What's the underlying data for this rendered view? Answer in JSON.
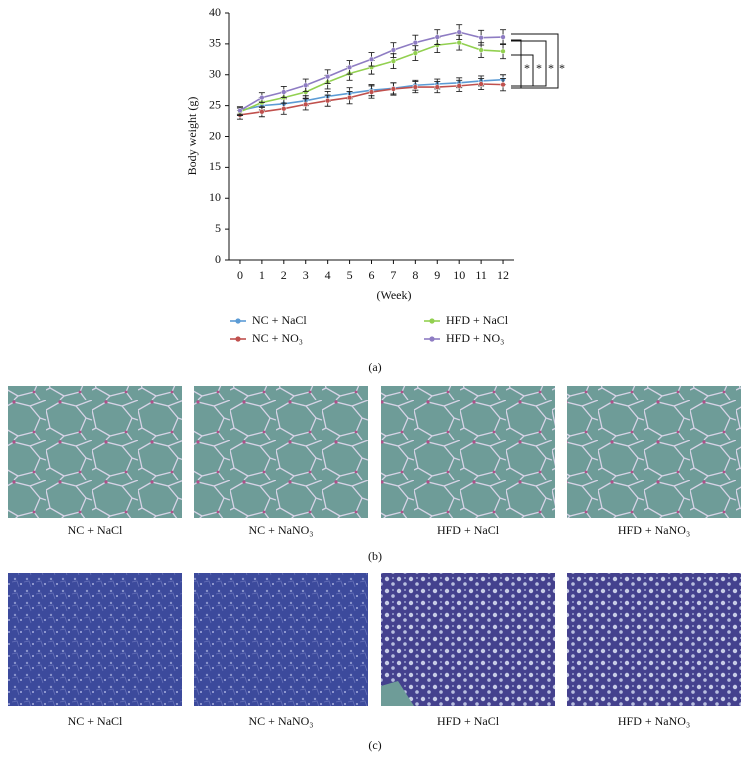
{
  "chart_data": {
    "type": "line",
    "panel_label": "(a)",
    "xlabel": "(Week)",
    "ylabel": "Body weight (g)",
    "x": [
      0,
      1,
      2,
      3,
      4,
      5,
      6,
      7,
      8,
      9,
      10,
      11,
      12
    ],
    "xlim": [
      -0.5,
      12.5
    ],
    "xticks": [
      0,
      1,
      2,
      3,
      4,
      5,
      6,
      7,
      8,
      9,
      10,
      11,
      12
    ],
    "ylim": [
      0,
      40
    ],
    "yticks": [
      0,
      5,
      10,
      15,
      20,
      25,
      30,
      35,
      40
    ],
    "series": [
      {
        "name": "NC + NaCl",
        "color": "#5b9bd5",
        "values": [
          24.2,
          25,
          25.3,
          25.8,
          26.5,
          27,
          27.5,
          27.8,
          28.3,
          28.5,
          28.7,
          29,
          29.2
        ],
        "errors": [
          0.6,
          0.7,
          0.8,
          0.8,
          0.8,
          0.9,
          0.9,
          0.9,
          0.8,
          0.8,
          0.8,
          0.8,
          0.8
        ]
      },
      {
        "name": "NC + NO₃",
        "color": "#c0504d",
        "values": [
          23.5,
          24,
          24.5,
          25.2,
          25.8,
          26.3,
          27.2,
          27.7,
          28,
          28,
          28.2,
          28.5,
          28.4
        ],
        "errors": [
          0.7,
          0.8,
          0.9,
          0.9,
          0.9,
          1.0,
          1.0,
          1.0,
          0.9,
          0.9,
          0.9,
          0.9,
          1.0
        ]
      },
      {
        "name": "HFD + NaCl",
        "color": "#92d050",
        "values": [
          24,
          25.5,
          26.3,
          27.2,
          28.8,
          30.2,
          31.2,
          32.2,
          33.5,
          34.8,
          35.2,
          34,
          33.8
        ],
        "errors": [
          0.6,
          0.8,
          0.9,
          1.0,
          1.1,
          1.1,
          1.1,
          1.2,
          1.2,
          1.2,
          1.2,
          1.2,
          1.2
        ]
      },
      {
        "name": "HFD + NO₃",
        "color": "#8e7cc3",
        "values": [
          24.2,
          26.3,
          27.2,
          28.3,
          29.7,
          31.2,
          32.5,
          34,
          35.2,
          36.1,
          36.9,
          36,
          36.1
        ],
        "errors": [
          0.6,
          0.8,
          0.9,
          1.0,
          1.1,
          1.1,
          1.1,
          1.2,
          1.2,
          1.2,
          1.2,
          1.2,
          1.2
        ]
      }
    ],
    "annotations": [
      "*",
      "*",
      "*",
      "*"
    ]
  },
  "panels": [
    {
      "label": "(b)",
      "captions": [
        "NC + NaCl",
        "NC + NaNO₃",
        "HFD + NaCl",
        "HFD + NaNO₃"
      ]
    },
    {
      "label": "(c)",
      "captions": [
        "NC + NaCl",
        "NC + NaNO₃",
        "HFD + NaCl",
        "HFD + NaNO₃"
      ]
    }
  ]
}
